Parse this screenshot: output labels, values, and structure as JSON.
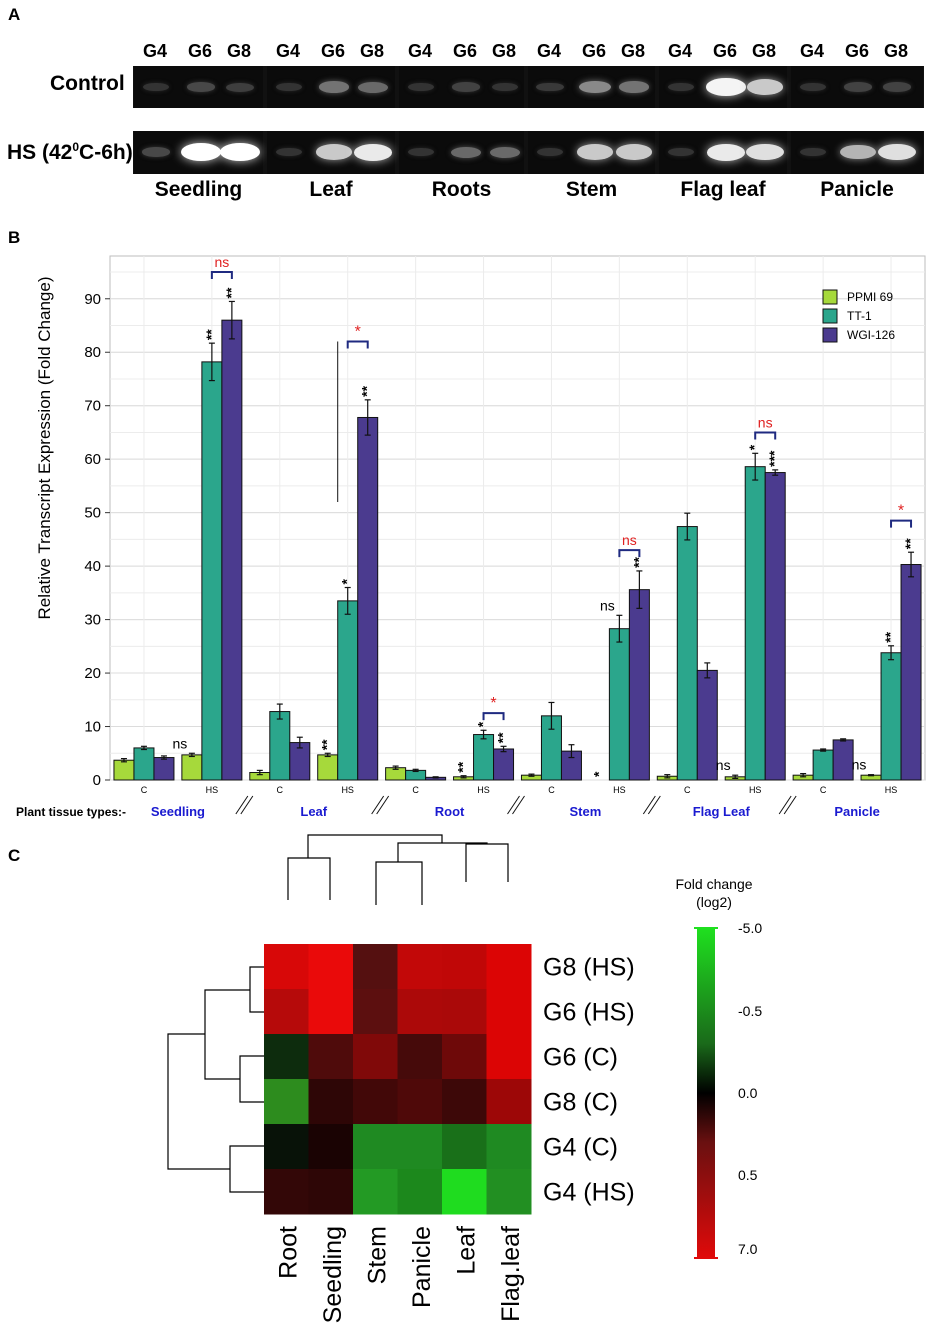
{
  "panels": {
    "a": "A",
    "b": "B",
    "c": "C"
  },
  "gel": {
    "lanes": [
      "G4",
      "G6",
      "G8"
    ],
    "row_labels": [
      "Control",
      "HS (42"
    ],
    "row2_sup": "0",
    "row2_suffix": "C-6h)",
    "tissues": [
      "Seedling",
      "Leaf",
      "Roots",
      "Stem",
      "Flag leaf",
      "Panicle"
    ],
    "band_intensity": {
      "control": [
        [
          0.05,
          0.15,
          0.1
        ],
        [
          0.05,
          0.35,
          0.3
        ],
        [
          0.05,
          0.12,
          0.05
        ],
        [
          0.08,
          0.45,
          0.35
        ],
        [
          0.05,
          0.95,
          0.75
        ],
        [
          0.05,
          0.12,
          0.12
        ]
      ],
      "hs": [
        [
          0.15,
          1.0,
          1.0
        ],
        [
          0.05,
          0.75,
          0.9
        ],
        [
          0.05,
          0.3,
          0.3
        ],
        [
          0.05,
          0.75,
          0.75
        ],
        [
          0.05,
          0.9,
          0.85
        ],
        [
          0.05,
          0.65,
          0.85
        ]
      ]
    }
  },
  "chart_data": [
    {
      "type": "bar",
      "ylabel": "Relative Transcript Expression (Fold Change)",
      "ylim": [
        0,
        98
      ],
      "yticks": [
        "0",
        "10",
        "20",
        "30",
        "40",
        "50",
        "60",
        "70",
        "80",
        "90"
      ],
      "conditions": [
        "C",
        "HS"
      ],
      "tissues": [
        "Seedling",
        "Leaf",
        "Root",
        "Stem",
        "Flag Leaf",
        "Panicle"
      ],
      "tissue_axis_label": "Plant tissue types:-",
      "series": [
        {
          "name": "PPMI 69",
          "color": "#a6d93b",
          "values": [
            3.7,
            4.7,
            1.4,
            4.7,
            2.3,
            0.6,
            0.9,
            0.0,
            0.7,
            0.6,
            0.9,
            0.9
          ],
          "errors": [
            0.3,
            0.3,
            0.4,
            0.3,
            0.3,
            0.2,
            0.2,
            0,
            0.3,
            0.3,
            0.3,
            0.1
          ]
        },
        {
          "name": "TT-1",
          "color": "#2ba68c",
          "values": [
            6.0,
            78.2,
            12.8,
            33.5,
            1.8,
            8.5,
            12.0,
            28.3,
            47.4,
            58.6,
            5.6,
            23.8
          ],
          "errors": [
            0.3,
            3.5,
            1.4,
            2.5,
            0.2,
            0.8,
            2.5,
            2.5,
            2.5,
            2.5,
            0.2,
            1.3
          ]
        },
        {
          "name": "WGI-126",
          "color": "#4b3b8f",
          "values": [
            4.2,
            86.0,
            7.0,
            67.8,
            0.5,
            5.8,
            5.4,
            35.6,
            20.5,
            57.5,
            7.5,
            40.3
          ],
          "errors": [
            0.3,
            3.5,
            1.0,
            3.3,
            0.1,
            0.5,
            1.2,
            3.5,
            1.4,
            0.5,
            0.2,
            2.3
          ]
        }
      ],
      "annotations": [
        {
          "text": "ns",
          "group": 1,
          "series": 0
        },
        {
          "text": "**",
          "group": 1,
          "series": 1
        },
        {
          "text": "**",
          "group": 1,
          "series": 2
        },
        {
          "text": "**",
          "group": 3,
          "series": 0
        },
        {
          "text": "*",
          "group": 3,
          "series": 1
        },
        {
          "text": "**",
          "group": 3,
          "series": 2
        },
        {
          "text": "**",
          "group": 5,
          "series": 0
        },
        {
          "text": "*",
          "group": 5,
          "series": 1
        },
        {
          "text": "**",
          "group": 5,
          "series": 2
        },
        {
          "text": "*",
          "group": 7,
          "series": 0
        },
        {
          "text": "ns",
          "group": 7,
          "series": 1
        },
        {
          "text": "**",
          "group": 7,
          "series": 2
        },
        {
          "text": "ns",
          "group": 9,
          "series": 0
        },
        {
          "text": "*",
          "group": 9,
          "series": 1
        },
        {
          "text": "***",
          "group": 9,
          "series": 2
        },
        {
          "text": "ns",
          "group": 11,
          "series": 0
        },
        {
          "text": "**",
          "group": 11,
          "series": 1
        },
        {
          "text": "**",
          "group": 11,
          "series": 2
        }
      ],
      "brackets": [
        {
          "group": 1,
          "text": "ns",
          "y": 95
        },
        {
          "group": 3,
          "text": "*",
          "y": 82
        },
        {
          "group": 5,
          "text": "*",
          "y": 12.5
        },
        {
          "group": 7,
          "text": "ns",
          "y": 43
        },
        {
          "group": 9,
          "text": "ns",
          "y": 65
        },
        {
          "group": 11,
          "text": "*",
          "y": 48.5
        }
      ]
    },
    {
      "type": "heatmap",
      "rows": [
        "G8 (HS)",
        "G6 (HS)",
        "G6 (C)",
        "G8 (C)",
        "G4 (C)",
        "G4 (HS)"
      ],
      "columns": [
        "Root",
        "Seedling",
        "Stem",
        "Panicle",
        "Leaf",
        "Flag.leaf"
      ],
      "colorbar_title_1": "Fold change",
      "colorbar_title_2": "(log2)",
      "colorbar_ticks": [
        "-5.0",
        "-0.5",
        "0.0",
        "0.5",
        "7.0"
      ],
      "colors": [
        [
          "#d80808",
          "#ea0a0a",
          "#551010",
          "#c20808",
          "#c00707",
          "#dc0505"
        ],
        [
          "#b60a0a",
          "#ea0a0a",
          "#5c0f0f",
          "#ac0909",
          "#aa0909",
          "#dc0505"
        ],
        [
          "#0d2c0d",
          "#4f0b0b",
          "#800909",
          "#460a0a",
          "#6e0909",
          "#dc0505"
        ],
        [
          "#2d8c1e",
          "#2e0606",
          "#420808",
          "#4f0909",
          "#3d0808",
          "#9d0707"
        ],
        [
          "#081208",
          "#1a0303",
          "#1f8a22",
          "#1f8a22",
          "#197019",
          "#1f8a22"
        ],
        [
          "#330707",
          "#2e0606",
          "#239a24",
          "#1c881c",
          "#1fdc1f",
          "#228f22"
        ]
      ]
    }
  ]
}
